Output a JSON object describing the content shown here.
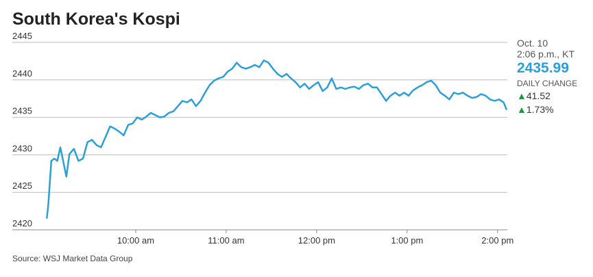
{
  "chart_data": {
    "type": "line",
    "title": "South Korea's Kospi",
    "source": "Source: WSJ Market Data Group",
    "date": "Oct. 10",
    "time": "2:06 p.m., KT",
    "last_value": "2435.99",
    "change_label": "DAILY CHANGE",
    "change": "41.52",
    "change_pct": "1.73%",
    "x": [
      "09:01",
      "09:02",
      "09:03",
      "09:04",
      "09:06",
      "09:08",
      "09:10",
      "09:14",
      "09:16",
      "09:19",
      "09:22",
      "09:25",
      "09:28",
      "09:31",
      "09:34",
      "09:37",
      "09:40",
      "09:43",
      "09:46",
      "09:49",
      "09:52",
      "09:55",
      "09:58",
      "10:01",
      "10:04",
      "10:07",
      "10:10",
      "10:13",
      "10:16",
      "10:19",
      "10:22",
      "10:25",
      "10:28",
      "10:31",
      "10:34",
      "10:37",
      "10:40",
      "10:43",
      "10:46",
      "10:49",
      "10:52",
      "10:55",
      "10:58",
      "11:01",
      "11:04",
      "11:07",
      "11:10",
      "11:13",
      "11:16",
      "11:19",
      "11:22",
      "11:25",
      "11:28",
      "11:31",
      "11:34",
      "11:37",
      "11:40",
      "11:43",
      "11:46",
      "11:49",
      "11:52",
      "11:55",
      "11:58",
      "12:01",
      "12:04",
      "12:07",
      "12:10",
      "12:13",
      "12:16",
      "12:19",
      "12:22",
      "12:25",
      "12:28",
      "12:31",
      "12:34",
      "12:37",
      "12:40",
      "12:43",
      "12:46",
      "12:49",
      "12:52",
      "12:55",
      "12:58",
      "13:01",
      "13:04",
      "13:07",
      "13:10",
      "13:13",
      "13:16",
      "13:19",
      "13:22",
      "13:25",
      "13:28",
      "13:31",
      "13:34",
      "13:37",
      "13:40",
      "13:43",
      "13:46",
      "13:49",
      "13:52",
      "13:55",
      "13:58",
      "14:01",
      "14:04",
      "14:06"
    ],
    "series": [
      {
        "name": "Kospi",
        "color": "#2a9fd8",
        "values": [
          2421.5,
          2423.3,
          2426.2,
          2429.2,
          2429.5,
          2429.2,
          2431.0,
          2427.1,
          2430.1,
          2430.8,
          2429.2,
          2429.5,
          2431.7,
          2432.0,
          2431.3,
          2431.0,
          2432.4,
          2433.8,
          2433.5,
          2433.1,
          2432.6,
          2434.0,
          2434.2,
          2435.0,
          2434.7,
          2435.1,
          2435.6,
          2435.3,
          2435.0,
          2435.1,
          2435.6,
          2435.8,
          2436.5,
          2437.2,
          2437.0,
          2437.4,
          2436.5,
          2437.2,
          2438.3,
          2439.3,
          2439.9,
          2440.2,
          2440.4,
          2441.1,
          2441.5,
          2442.3,
          2441.7,
          2441.5,
          2441.7,
          2442.0,
          2441.7,
          2442.6,
          2442.3,
          2441.5,
          2440.8,
          2440.4,
          2440.8,
          2440.2,
          2439.7,
          2439.0,
          2439.5,
          2438.8,
          2439.3,
          2439.7,
          2438.5,
          2439.0,
          2440.2,
          2438.8,
          2439.0,
          2438.8,
          2439.0,
          2439.1,
          2438.8,
          2439.3,
          2439.5,
          2439.0,
          2439.0,
          2438.1,
          2437.2,
          2437.9,
          2438.3,
          2437.9,
          2438.3,
          2437.9,
          2438.6,
          2439.0,
          2439.3,
          2439.7,
          2439.9,
          2439.3,
          2438.3,
          2437.9,
          2437.4,
          2438.3,
          2438.1,
          2438.3,
          2437.9,
          2437.6,
          2437.7,
          2438.1,
          2437.9,
          2437.4,
          2437.2,
          2437.4,
          2437.0,
          2436.0
        ]
      }
    ],
    "xlim": [
      "09:00",
      "14:06"
    ],
    "xticks": [
      {
        "value": "10:00",
        "label": "10:00 am"
      },
      {
        "value": "11:00",
        "label": "11:00 am"
      },
      {
        "value": "12:00",
        "label": "12:00 pm"
      },
      {
        "value": "13:00",
        "label": "1:00 pm"
      },
      {
        "value": "14:00",
        "label": "2:00 pm"
      }
    ],
    "ylim": [
      2420,
      2445
    ],
    "yticks": [
      2420,
      2425,
      2430,
      2435,
      2440,
      2445
    ],
    "grid": true
  }
}
